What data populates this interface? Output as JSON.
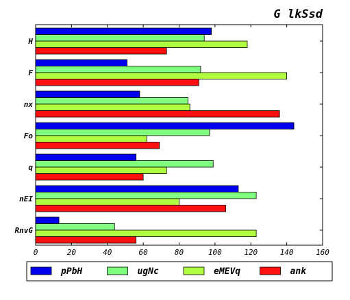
{
  "chart_data": {
    "type": "bar",
    "orientation": "horizontal",
    "title": "G lkSsd",
    "xlabel": "",
    "ylabel": "",
    "xlim": [
      0,
      160
    ],
    "xticks": [
      0,
      20,
      40,
      60,
      80,
      100,
      120,
      140,
      160
    ],
    "categories": [
      "H",
      "F",
      "nx",
      "Fo",
      "q",
      "nEI",
      "RnvG"
    ],
    "series": [
      {
        "name": "pPbH",
        "color": "#0000ee",
        "values": [
          98,
          51,
          58,
          144,
          56,
          113,
          13
        ]
      },
      {
        "name": "ugNc",
        "color": "#80ff80",
        "values": [
          94,
          92,
          85,
          97,
          99,
          123,
          44
        ]
      },
      {
        "name": "eMEVq",
        "color": "#b0ff40",
        "values": [
          118,
          140,
          86,
          62,
          73,
          80,
          123
        ]
      },
      {
        "name": "ank",
        "color": "#ff1010",
        "values": [
          73,
          91,
          136,
          69,
          60,
          106,
          56
        ]
      }
    ],
    "grid": false,
    "legend_position": "bottom"
  }
}
